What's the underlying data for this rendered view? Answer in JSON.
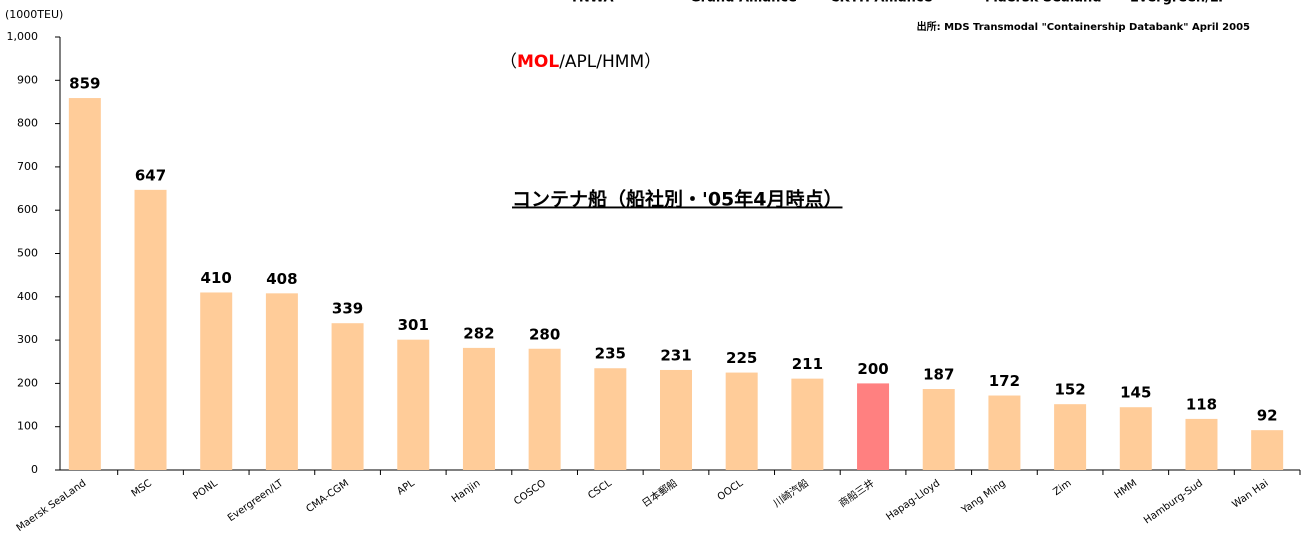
{
  "chart_data": {
    "type": "bar",
    "title": "コンテナ船（船社別・'05年4月時点）",
    "subtitle": {
      "open": "（",
      "highlight": "MOL",
      "rest": "/APL/HMM）"
    },
    "highlight_color": "#ff0000",
    "unit": "(1000TEU)",
    "source": "出所: MDS Transmodal \"Containership Databank\" April 2005",
    "header": [
      "TNWA",
      "Grand Alliance",
      "CKYH Alliance",
      "Maersk Sealand",
      "Evergreen/LT"
    ],
    "categories": [
      "Maersk SeaLand",
      "MSC",
      "PONL",
      "Evergreen/LT",
      "CMA-CGM",
      "APL",
      "Hanjin",
      "COSCO",
      "CSCL",
      "日本郵船",
      "OOCL",
      "川崎汽船",
      "商船三井",
      "Hapag-Lloyd",
      "Yang Ming",
      "Zim",
      "HMM",
      "Hamburg-Sud",
      "Wan Hai"
    ],
    "values": [
      859,
      647,
      410,
      408,
      339,
      301,
      282,
      280,
      235,
      231,
      225,
      211,
      200,
      187,
      172,
      152,
      145,
      118,
      92
    ],
    "colors": [
      "#ffcc99",
      "#ffcc99",
      "#ffcc99",
      "#ffcc99",
      "#ffcc99",
      "#ffcc99",
      "#ffcc99",
      "#ffcc99",
      "#ffcc99",
      "#ffcc99",
      "#ffcc99",
      "#ffcc99",
      "#ff8080",
      "#ffcc99",
      "#ffcc99",
      "#ffcc99",
      "#ffcc99",
      "#ffcc99",
      "#ffcc99"
    ],
    "ylim": [
      0,
      1000
    ],
    "yticks": [
      0,
      100,
      200,
      300,
      400,
      500,
      600,
      700,
      800,
      900,
      {
        "value": 1000,
        "label": "1,000"
      }
    ]
  }
}
